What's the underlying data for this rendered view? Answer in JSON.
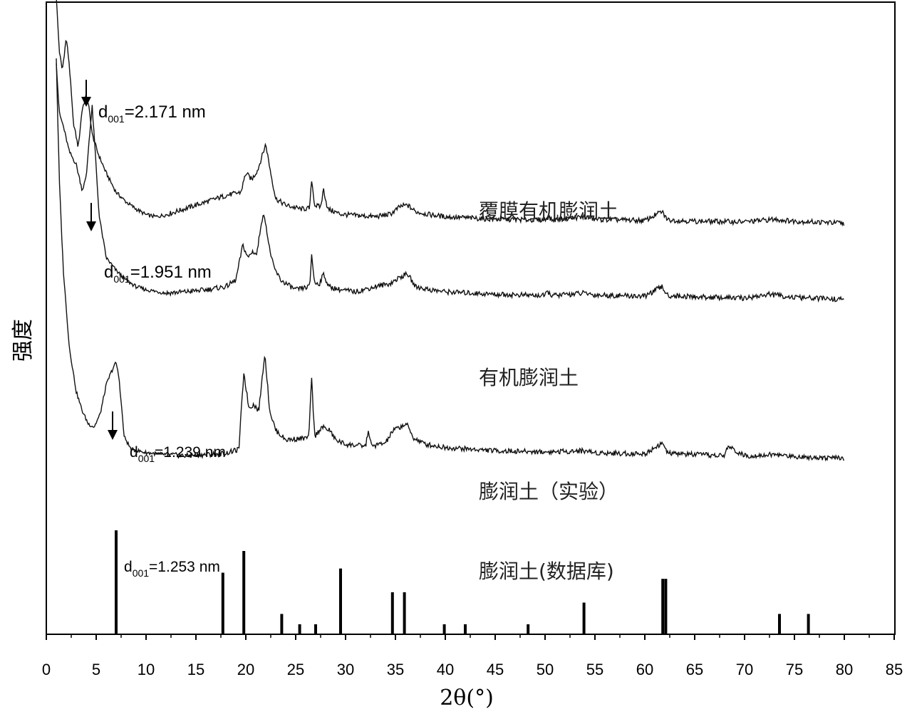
{
  "chart_data": {
    "type": "line",
    "xlabel": "2θ(°)",
    "ylabel": "强度",
    "xlim": [
      0,
      85
    ],
    "xticks": [
      0,
      5,
      10,
      15,
      20,
      25,
      30,
      35,
      40,
      45,
      50,
      55,
      60,
      65,
      70,
      75,
      80,
      85
    ],
    "y_ticks_shown": false,
    "grid": false,
    "series": [
      {
        "name": "覆膜有机膨润土",
        "x": [
          1.0,
          1.3,
          1.6,
          2.0,
          2.3,
          2.7,
          3.2,
          3.6,
          4.0,
          4.3,
          4.6,
          5.2,
          6.0,
          7.0,
          8.0,
          9.0,
          10.0,
          11.0,
          12.0,
          14.0,
          16.0,
          18.0,
          19.5,
          20.0,
          20.6,
          21.2,
          21.7,
          22.0,
          22.5,
          23.0,
          24.0,
          25.5,
          26.4,
          26.6,
          26.9,
          27.5,
          27.8,
          28.2,
          29.5,
          31.0,
          33.0,
          34.5,
          35.5,
          36.2,
          37.0,
          38.5,
          40.0,
          45.0,
          50.0,
          50.3,
          50.7,
          54.0,
          55.0,
          60.0,
          61.7,
          62.3,
          65.0,
          70.0,
          73.0,
          75.0,
          80.0
        ],
        "y": [
          0.995,
          0.91,
          0.88,
          0.93,
          0.89,
          0.8,
          0.76,
          0.82,
          0.84,
          0.82,
          0.78,
          0.75,
          0.72,
          0.69,
          0.675,
          0.664,
          0.655,
          0.652,
          0.655,
          0.665,
          0.675,
          0.685,
          0.69,
          0.72,
          0.71,
          0.725,
          0.75,
          0.765,
          0.72,
          0.68,
          0.67,
          0.664,
          0.665,
          0.71,
          0.67,
          0.667,
          0.695,
          0.664,
          0.656,
          0.654,
          0.652,
          0.656,
          0.668,
          0.67,
          0.66,
          0.655,
          0.652,
          0.648,
          0.647,
          0.652,
          0.647,
          0.652,
          0.648,
          0.646,
          0.66,
          0.647,
          0.645,
          0.644,
          0.648,
          0.645,
          0.642
        ]
      },
      {
        "name": "有机膨润土",
        "x": [
          1.0,
          1.3,
          1.7,
          2.3,
          3.0,
          3.6,
          4.0,
          4.3,
          4.6,
          4.9,
          5.3,
          6.0,
          7.0,
          8.0,
          9.0,
          10.0,
          12.0,
          14.0,
          16.0,
          18.0,
          19.0,
          19.7,
          20.2,
          20.7,
          21.1,
          21.6,
          21.9,
          22.3,
          22.8,
          23.5,
          25.0,
          26.4,
          26.6,
          26.9,
          27.4,
          27.8,
          28.3,
          29.5,
          31.0,
          33.0,
          34.5,
          35.5,
          36.2,
          37.0,
          38.5,
          40.0,
          45.0,
          50.0,
          50.3,
          50.7,
          54.0,
          55.0,
          60.0,
          61.7,
          62.3,
          65.0,
          70.0,
          72.5,
          75.0,
          80.0
        ],
        "y": [
          0.86,
          0.78,
          0.76,
          0.72,
          0.7,
          0.66,
          0.68,
          0.74,
          0.79,
          0.72,
          0.62,
          0.555,
          0.535,
          0.52,
          0.51,
          0.505,
          0.5,
          0.502,
          0.505,
          0.51,
          0.52,
          0.575,
          0.555,
          0.565,
          0.56,
          0.615,
          0.62,
          0.575,
          0.54,
          0.52,
          0.505,
          0.51,
          0.56,
          0.515,
          0.515,
          0.53,
          0.51,
          0.505,
          0.502,
          0.51,
          0.515,
          0.525,
          0.53,
          0.51,
          0.505,
          0.502,
          0.498,
          0.496,
          0.502,
          0.496,
          0.5,
          0.497,
          0.495,
          0.51,
          0.496,
          0.494,
          0.492,
          0.498,
          0.493,
          0.49
        ]
      },
      {
        "name": "膨润土（实验）",
        "x": [
          1.0,
          1.3,
          1.7,
          2.3,
          3.0,
          3.6,
          4.2,
          4.8,
          5.4,
          6.0,
          6.5,
          6.8,
          7.0,
          7.3,
          7.8,
          8.5,
          10.0,
          12.0,
          14.0,
          16.0,
          18.0,
          19.3,
          19.8,
          20.3,
          20.8,
          21.3,
          21.9,
          22.4,
          23.0,
          24.0,
          26.3,
          26.6,
          26.9,
          27.6,
          28.4,
          29.0,
          30.0,
          32.0,
          32.3,
          32.6,
          34.0,
          34.8,
          35.5,
          36.1,
          36.8,
          38.0,
          40.0,
          45.0,
          50.0,
          54.0,
          55.0,
          60.0,
          61.7,
          62.3,
          65.0,
          68.0,
          68.3,
          70.0,
          73.0,
          75.0,
          80.0
        ],
        "y": [
          0.85,
          0.66,
          0.52,
          0.4,
          0.33,
          0.3,
          0.28,
          0.275,
          0.295,
          0.34,
          0.36,
          0.37,
          0.375,
          0.35,
          0.26,
          0.24,
          0.235,
          0.232,
          0.23,
          0.232,
          0.234,
          0.24,
          0.36,
          0.305,
          0.31,
          0.3,
          0.39,
          0.3,
          0.27,
          0.255,
          0.258,
          0.35,
          0.26,
          0.275,
          0.27,
          0.255,
          0.248,
          0.245,
          0.27,
          0.245,
          0.25,
          0.27,
          0.275,
          0.28,
          0.258,
          0.248,
          0.243,
          0.238,
          0.236,
          0.238,
          0.235,
          0.233,
          0.25,
          0.234,
          0.232,
          0.23,
          0.245,
          0.23,
          0.232,
          0.229,
          0.226
        ]
      },
      {
        "name": "膨润土(数据库)",
        "type": "stick",
        "x": [
          7.0,
          17.7,
          19.8,
          23.6,
          25.4,
          27.0,
          29.5,
          34.7,
          35.9,
          39.9,
          42.0,
          48.3,
          53.9,
          61.8,
          62.1,
          73.5,
          76.4
        ],
        "y": [
          1.0,
          0.59,
          0.8,
          0.19,
          0.09,
          0.09,
          0.63,
          0.4,
          0.4,
          0.09,
          0.09,
          0.09,
          0.3,
          0.53,
          0.53,
          0.19,
          0.19
        ]
      }
    ],
    "annotations": [
      {
        "text": "d001=2.171 nm",
        "base": "d",
        "sub": "001",
        "value": "=2.171 nm",
        "arrow_x": 4.0,
        "series": "覆膜有机膨润土"
      },
      {
        "text": "d001=1.951 nm",
        "base": "d",
        "sub": "001",
        "value": "=1.951 nm",
        "arrow_x": 4.6,
        "series": "有机膨润土"
      },
      {
        "text": "d001=1.239 nm",
        "base": "d",
        "sub": "001",
        "value": "=1.239 nm",
        "arrow_x": 6.8,
        "series": "膨润土（实验）"
      },
      {
        "text": "d001=1.253 nm",
        "base": "d",
        "sub": "001",
        "value": "=1.253 nm",
        "arrow_x": null,
        "series": "膨润土(数据库)"
      }
    ]
  }
}
